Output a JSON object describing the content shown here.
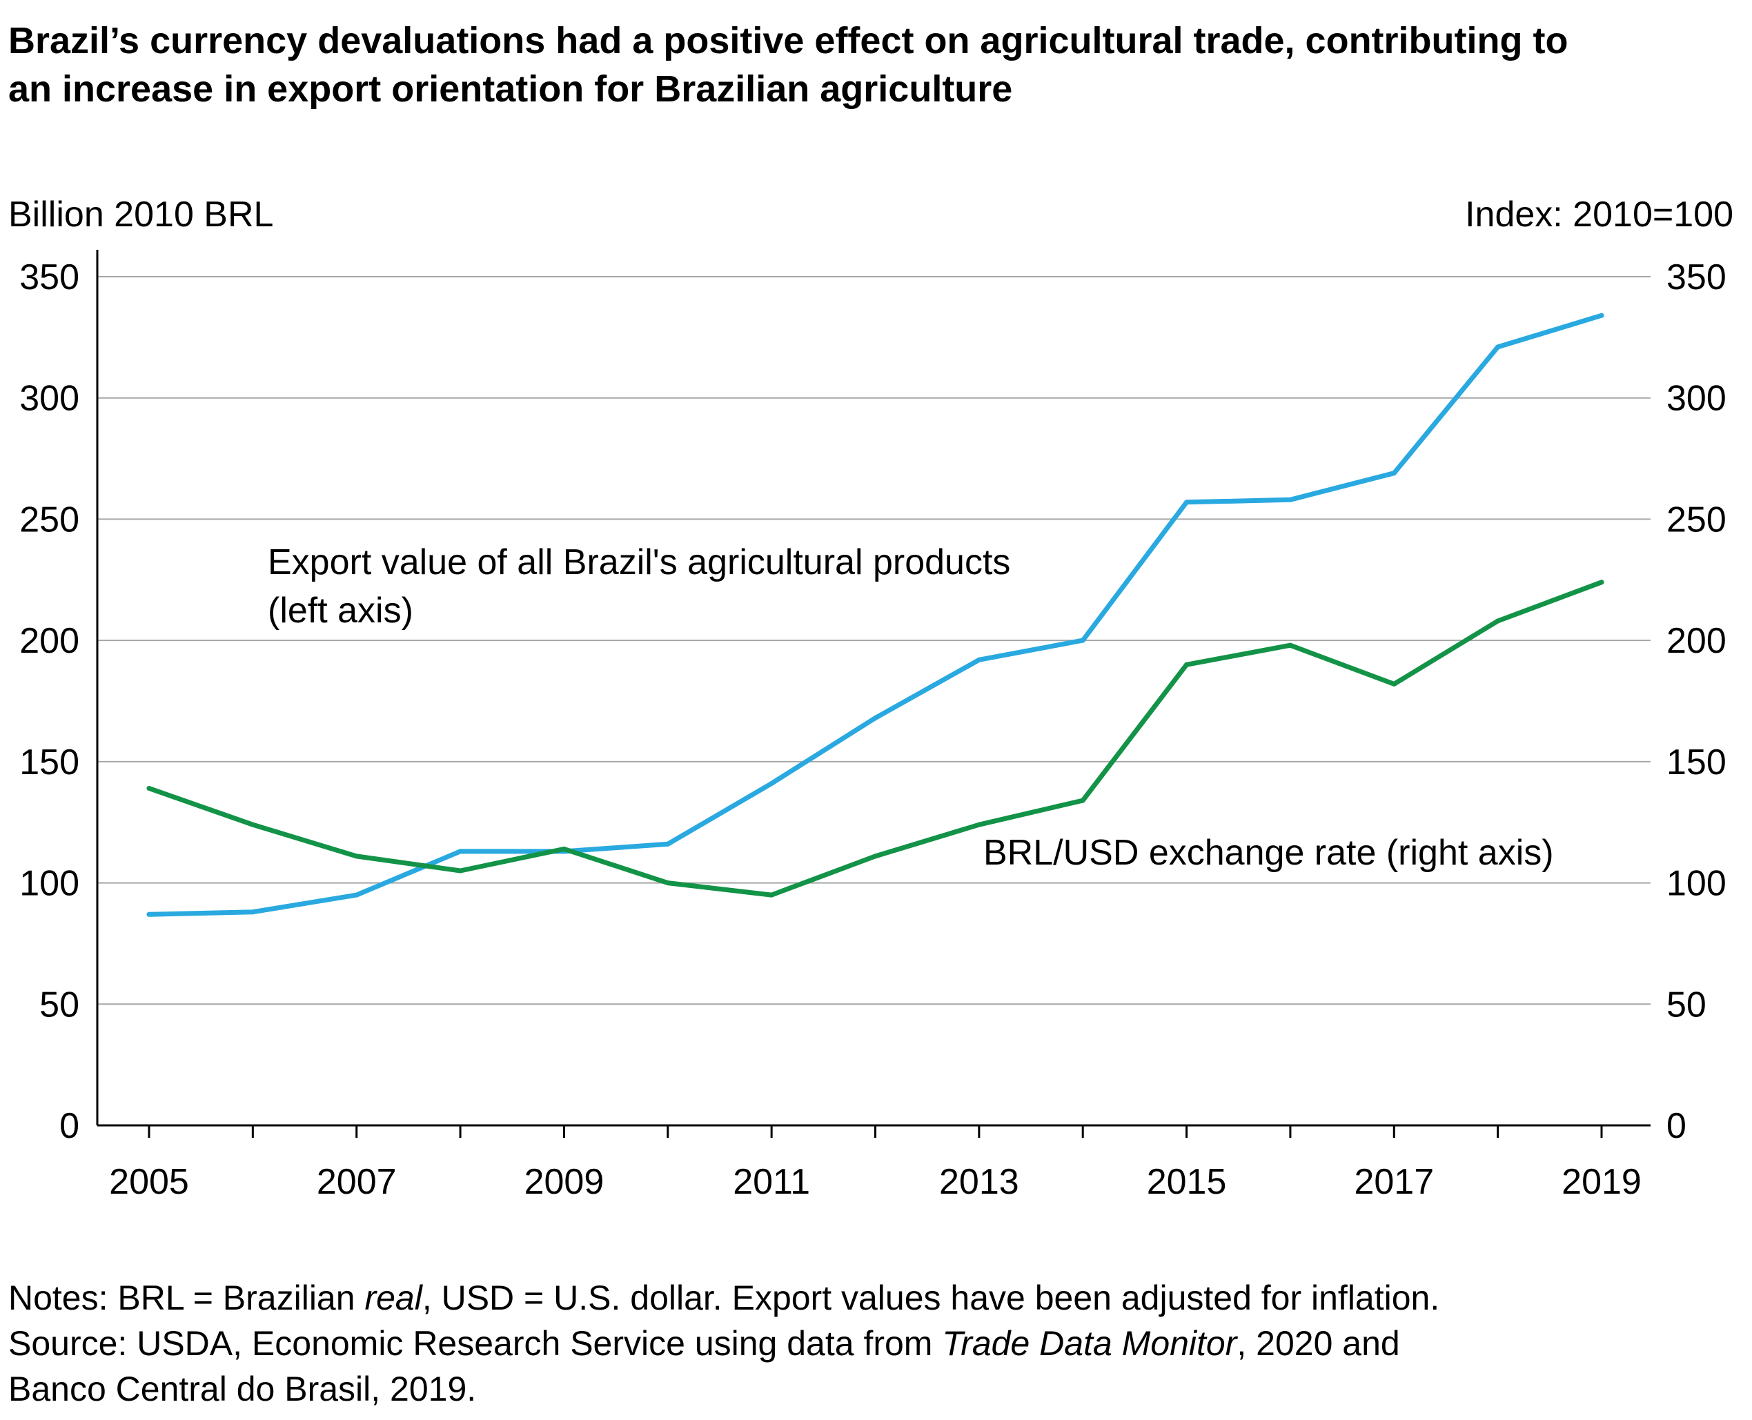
{
  "chart_data": {
    "type": "line",
    "title_lines": [
      "Brazil’s currency devaluations had a positive effect on agricultural trade, contributing to",
      "an increase in export orientation for Brazilian agriculture"
    ],
    "left_axis_label": "Billion 2010 BRL",
    "right_axis_label": "Index: 2010=100",
    "x": [
      2005,
      2006,
      2007,
      2008,
      2009,
      2010,
      2011,
      2012,
      2013,
      2014,
      2015,
      2016,
      2017,
      2018,
      2019
    ],
    "x_tick_labels": [
      "2005",
      "2007",
      "2009",
      "2011",
      "2013",
      "2015",
      "2017",
      "2019"
    ],
    "ylim": [
      0,
      350
    ],
    "y_ticks": [
      0,
      50,
      100,
      150,
      200,
      250,
      300,
      350
    ],
    "grid": true,
    "series": [
      {
        "name_lines": [
          "Export value of all Brazil's agricultural products",
          "(left axis)"
        ],
        "axis": "left",
        "color": "#29a9e0",
        "values": [
          87,
          88,
          95,
          113,
          113,
          116,
          141,
          168,
          192,
          200,
          257,
          258,
          269,
          321,
          334
        ]
      },
      {
        "name_lines": [
          "BRL/USD exchange rate (right axis)"
        ],
        "axis": "right",
        "color": "#129347",
        "values": [
          139,
          124,
          111,
          105,
          114,
          100,
          95,
          111,
          124,
          134,
          190,
          198,
          182,
          208,
          224
        ]
      }
    ]
  },
  "notes": {
    "line1_a": "Notes: BRL = Brazilian ",
    "line1_b": "real",
    "line1_c": ", USD = U.S. dollar. Export values have been adjusted for inflation.",
    "line2_a": "Source: USDA, Economic Research Service using data from ",
    "line2_b": "Trade Data Monitor",
    "line2_c": ", 2020 and",
    "line3": "Banco Central do Brasil, 2019."
  }
}
